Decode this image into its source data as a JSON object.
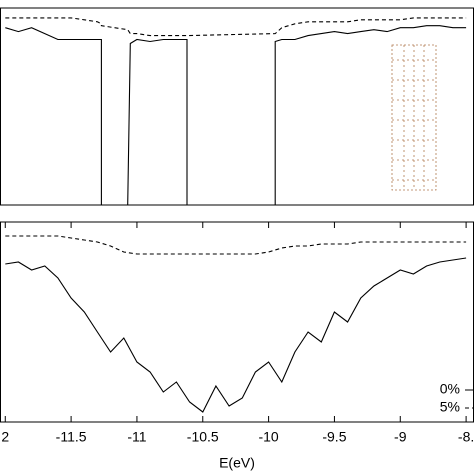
{
  "chart_data": [
    {
      "type": "line",
      "x": [
        -12,
        -11.9,
        -11.8,
        -11.7,
        -11.6,
        -11.5,
        -11.4,
        -11.3,
        -11.27,
        -11.27,
        -11.07,
        -11.05,
        -11.0,
        -10.9,
        -10.8,
        -10.7,
        -10.62,
        -10.62,
        -9.95,
        -9.95,
        -9.9,
        -9.8,
        -9.7,
        -9.6,
        -9.5,
        -9.4,
        -9.3,
        -9.2,
        -9.1,
        -9.0,
        -8.9,
        -8.8,
        -8.7,
        -8.6,
        -8.5
      ],
      "series": [
        {
          "name": "0%",
          "color": "#000000",
          "style": "solid",
          "values": [
            0.9,
            0.88,
            0.9,
            0.87,
            0.84,
            0.84,
            0.84,
            0.84,
            0.84,
            0,
            0,
            0.82,
            0.84,
            0.83,
            0.84,
            0.84,
            0.84,
            0,
            0,
            0.83,
            0.84,
            0.84,
            0.86,
            0.87,
            0.88,
            0.87,
            0.88,
            0.89,
            0.88,
            0.9,
            0.9,
            0.91,
            0.91,
            0.9,
            0.9
          ]
        },
        {
          "name": "5%",
          "color": "#000000",
          "style": "dashed",
          "values": [
            0.95,
            0.95,
            0.95,
            0.95,
            0.95,
            0.95,
            0.94,
            0.93,
            0.92,
            0.91,
            0.89,
            0.87,
            0.87,
            0.86,
            0.86,
            0.86,
            0.86,
            0.86,
            0.87,
            0.87,
            0.9,
            0.92,
            0.93,
            0.93,
            0.93,
            0.93,
            0.94,
            0.94,
            0.94,
            0.94,
            0.95,
            0.95,
            0.95,
            0.95,
            0.95
          ]
        }
      ],
      "xlim": [
        -12.04,
        -8.44
      ],
      "ylim": [
        0,
        1
      ]
    },
    {
      "type": "line",
      "x": [
        -12,
        -11.9,
        -11.8,
        -11.7,
        -11.6,
        -11.5,
        -11.4,
        -11.3,
        -11.2,
        -11.1,
        -11.0,
        -10.9,
        -10.8,
        -10.7,
        -10.6,
        -10.5,
        -10.4,
        -10.3,
        -10.2,
        -10.1,
        -10.0,
        -9.9,
        -9.8,
        -9.7,
        -9.6,
        -9.5,
        -9.4,
        -9.3,
        -9.2,
        -9.1,
        -9.0,
        -8.9,
        -8.8,
        -8.7,
        -8.6,
        -8.5
      ],
      "series": [
        {
          "name": "0%",
          "color": "#000000",
          "style": "solid",
          "values": [
            0.79,
            0.8,
            0.76,
            0.78,
            0.72,
            0.62,
            0.55,
            0.45,
            0.35,
            0.42,
            0.3,
            0.25,
            0.15,
            0.2,
            0.1,
            0.05,
            0.18,
            0.08,
            0.12,
            0.25,
            0.3,
            0.2,
            0.35,
            0.45,
            0.4,
            0.55,
            0.5,
            0.62,
            0.68,
            0.72,
            0.76,
            0.74,
            0.78,
            0.8,
            0.81,
            0.82
          ]
        },
        {
          "name": "5%",
          "color": "#000000",
          "style": "dashed",
          "values": [
            0.93,
            0.93,
            0.93,
            0.93,
            0.93,
            0.92,
            0.91,
            0.9,
            0.88,
            0.85,
            0.84,
            0.84,
            0.84,
            0.84,
            0.84,
            0.84,
            0.84,
            0.84,
            0.84,
            0.84,
            0.85,
            0.87,
            0.88,
            0.88,
            0.89,
            0.89,
            0.89,
            0.9,
            0.9,
            0.9,
            0.9,
            0.9,
            0.9,
            0.9,
            0.9,
            0.9
          ]
        }
      ],
      "xlim": [
        -12.04,
        -8.44
      ],
      "ylim": [
        0,
        1
      ],
      "xticks": [
        {
          "value": -12,
          "label": "2"
        },
        -11.5,
        -11,
        -10.5,
        -10,
        -9.5,
        -9,
        {
          "value": -8.5,
          "label": "-8."
        }
      ],
      "x_label": "E(eV)",
      "legend": "bottom-right"
    }
  ]
}
